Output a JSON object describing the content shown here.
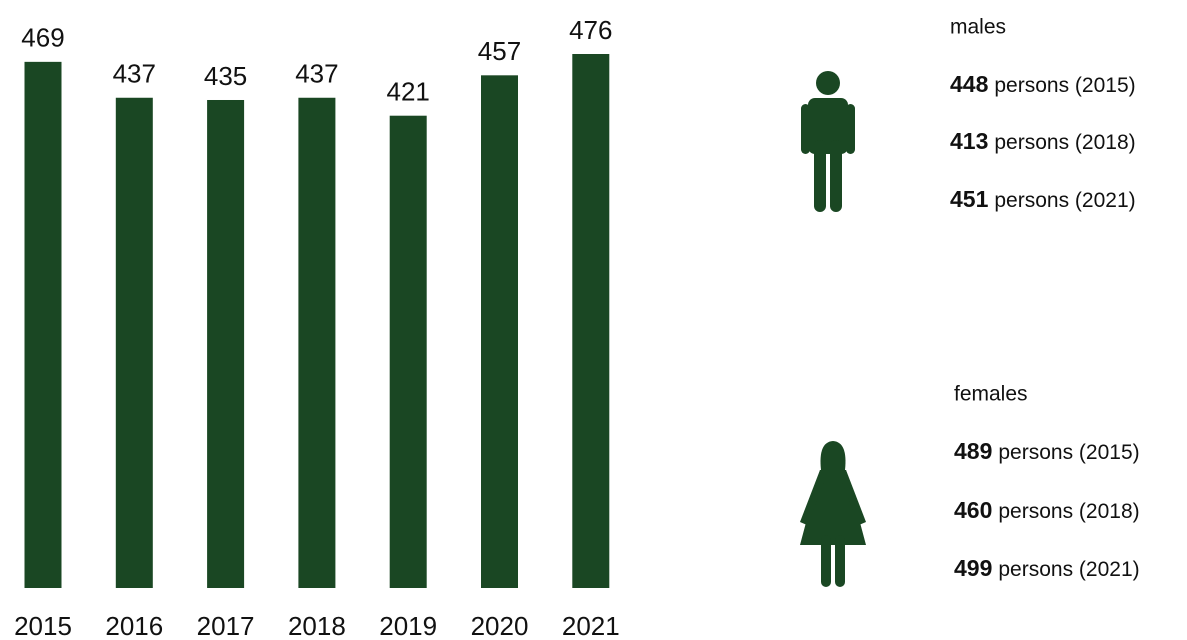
{
  "chart_data": {
    "type": "bar",
    "categories": [
      "2015",
      "2016",
      "2017",
      "2018",
      "2019",
      "2020",
      "2021"
    ],
    "values": [
      469,
      437,
      435,
      437,
      421,
      457,
      476
    ],
    "color": "#1a4723"
  },
  "panels": [
    {
      "label": "males",
      "items": [
        {
          "value": 448,
          "text": "persons (2015)"
        },
        {
          "value": 413,
          "text": "persons (2018)"
        },
        {
          "value": 451,
          "text": "persons (2021)"
        }
      ]
    },
    {
      "label": "females",
      "items": [
        {
          "value": 489,
          "text": "persons (2015)"
        },
        {
          "value": 460,
          "text": "persons (2018)"
        },
        {
          "value": 499,
          "text": "persons (2021)"
        }
      ]
    }
  ]
}
